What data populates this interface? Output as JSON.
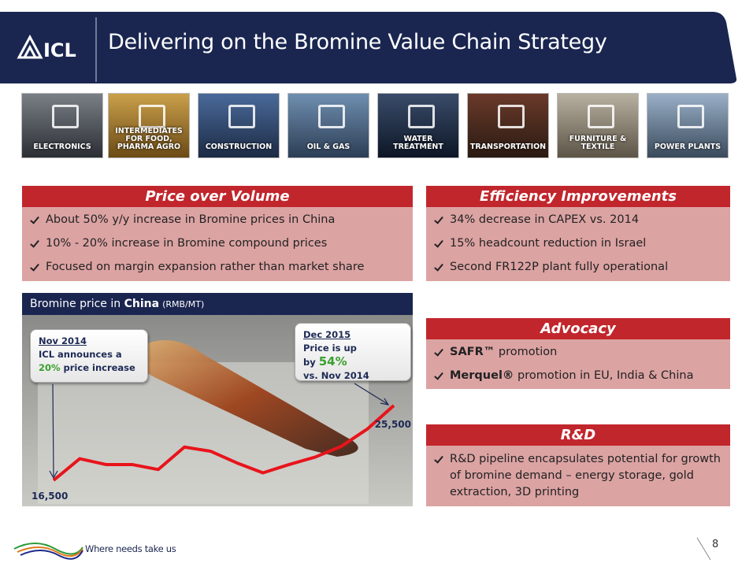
{
  "header": {
    "logo": "ICL",
    "title": "Delivering on the Bromine Value Chain Strategy"
  },
  "sectors": [
    "ELECTRONICS",
    "INTERMEDIATES FOR FOOD, PHARMA AGRO",
    "CONSTRUCTION",
    "OIL & GAS",
    "WATER TREATMENT",
    "TRANSPORTATION",
    "FURNITURE & TEXTILE",
    "POWER PLANTS"
  ],
  "panels": [
    {
      "title": "Price over Volume",
      "bullets": [
        "About 50% y/y increase in Bromine prices in China",
        "10% - 20% increase in Bromine compound prices",
        "Focused on margin  expansion rather than market share"
      ]
    },
    {
      "title": "Efficiency Improvements",
      "bullets": [
        "34% decrease in CAPEX vs. 2014",
        "15% headcount reduction in Israel",
        "Second  FR122P plant fully operational"
      ]
    },
    {
      "title": "Advocacy",
      "bullets": [
        {
          "strong": "SAFR™",
          "text": " promotion"
        },
        {
          "strong": "Merquel®",
          "text": " promotion in EU, India & China"
        }
      ]
    },
    {
      "title": "R&D",
      "bullets": [
        "R&D pipeline encapsulates potential for growth of bromine demand – energy storage, gold extraction, 3D printing"
      ]
    }
  ],
  "chart_data": {
    "type": "line",
    "title": "Bromine price in ",
    "title_emphasis": "China",
    "unit": "(RMB/MT)",
    "color": "#e8141b",
    "values": [
      16500,
      19100,
      18400,
      18400,
      17800,
      20500,
      20000,
      18600,
      17400,
      18400,
      19300,
      20600,
      22700,
      25500
    ],
    "value_labels": [
      "16,500",
      null,
      null,
      null,
      null,
      null,
      null,
      null,
      null,
      null,
      null,
      null,
      null,
      "25,500"
    ],
    "annotations": [
      {
        "date": "Nov 2014",
        "text": "ICL announces a",
        "highlight": "20%",
        "text2": "price increase"
      },
      {
        "date": "Dec 2015",
        "text": "Price is up by",
        "highlight": "54%",
        "text2": "vs. Nov 2014"
      }
    ]
  },
  "footer": {
    "tagline": "Where needs take us",
    "page": 8
  }
}
